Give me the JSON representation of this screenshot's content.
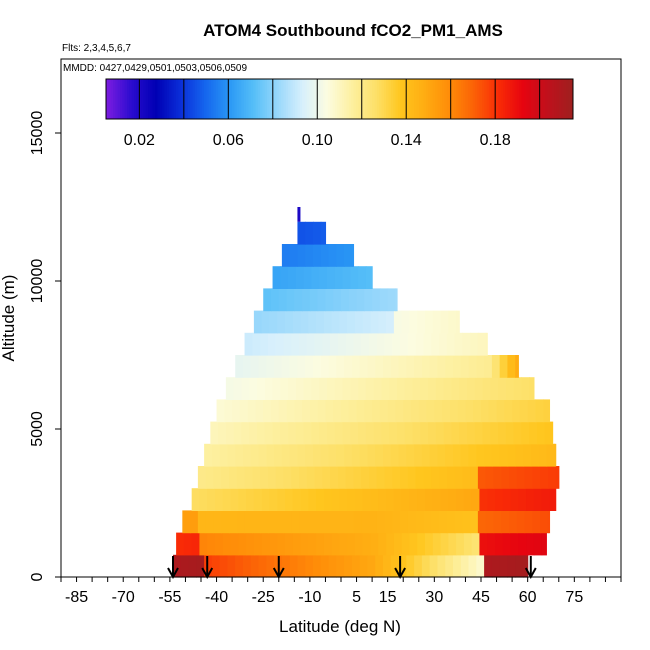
{
  "chart_data": {
    "type": "heatmap",
    "title": "ATOM4 Southbound fCO2_PM1_AMS",
    "flights_label": "Flts: 2,3,4,5,6,7",
    "mmdd_label": "MMDD: 0427,0429,0501,0503,0506,0509",
    "xlabel": "Latitude (deg N)",
    "ylabel": "Altitude (m)",
    "xlim": [
      -90,
      90
    ],
    "ylim": [
      0,
      17500
    ],
    "x_ticks": [
      -85,
      -70,
      -55,
      -40,
      -25,
      -10,
      5,
      15,
      30,
      45,
      60,
      75
    ],
    "x_tick_labels": [
      "-85",
      "-70",
      "-55",
      "-40",
      "-25",
      "-10",
      "5",
      "15",
      "30",
      "45",
      "60",
      "75"
    ],
    "y_ticks": [
      0,
      5000,
      10000,
      15000
    ],
    "y_tick_labels": [
      "0",
      "5000",
      "10000",
      "15000"
    ],
    "colorbar": {
      "min": 0.005,
      "max": 0.215,
      "ticks": [
        0.02,
        0.06,
        0.1,
        0.14,
        0.18
      ],
      "tick_labels": [
        "0.02",
        "0.06",
        "0.10",
        "0.14",
        "0.18"
      ],
      "colors": [
        "#7a1ce0",
        "#2a0ccf",
        "#0000b4",
        "#0a2ed8",
        "#1565ee",
        "#2a98f5",
        "#56bff8",
        "#9ad8fb",
        "#d8f0fc",
        "#fcfce0",
        "#fdf0a0",
        "#fde068",
        "#ffc61e",
        "#ffac12",
        "#ff8c08",
        "#fb6106",
        "#f92b06",
        "#e60410",
        "#c0101c",
        "#a01f1f"
      ]
    },
    "arrow_latitudes": [
      -54,
      -43,
      -20,
      19,
      61
    ],
    "section_extent": {
      "altitude_bins": [
        0,
        12000
      ],
      "south_edge_latitude": [
        -54,
        -53,
        -51,
        -48,
        -46,
        -44,
        -42,
        -40,
        -37,
        -34,
        -31,
        -28,
        -25,
        -22,
        -19,
        -14
      ],
      "north_edge_latitude": [
        60,
        66,
        67,
        69,
        70,
        69,
        68,
        67,
        62,
        57,
        47,
        38,
        18,
        10,
        4,
        -5
      ]
    }
  }
}
